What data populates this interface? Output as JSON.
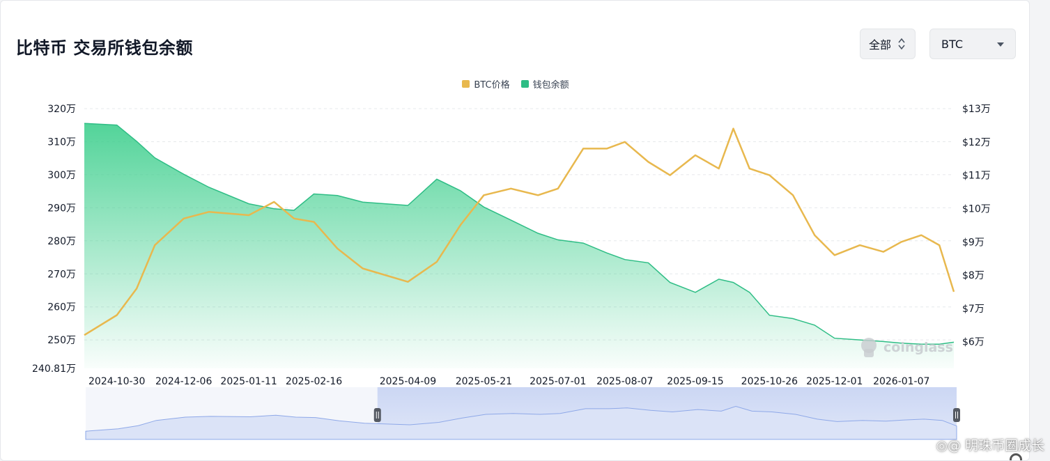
{
  "page": {
    "title": "比特币 交易所钱包余额",
    "range_label": "全部",
    "coin_label": "BTC",
    "watermark": "明珠币圈成长",
    "brand": "coinglass",
    "icons": [
      "sort-arrows-icon",
      "caret-down-icon",
      "coinglass-logo-icon",
      "weibo-at-icon",
      "gear-icon"
    ]
  },
  "chart_data": {
    "type": "area",
    "title": "",
    "xlabel": "",
    "ylabel": "",
    "x_ticks": [
      "2024-10-30",
      "2024-12-06",
      "2025-01-11",
      "2025-02-16",
      "2025-04-09",
      "2025-05-21",
      "2025-07-01",
      "2025-08-07",
      "2025-09-15",
      "2025-10-26",
      "2025-12-01",
      "2026-01-07"
    ],
    "y_left_ticks": [
      "320万",
      "310万",
      "300万",
      "290万",
      "280万",
      "270万",
      "260万",
      "250万"
    ],
    "y_left_min_label": "240.81万",
    "y_left_range": [
      2408100,
      3200000
    ],
    "y_right_ticks": [
      "$13万",
      "$12万",
      "$11万",
      "$10万",
      "$9万",
      "$8万",
      "$7万",
      "$6万"
    ],
    "y_right_range": [
      52000,
      130000
    ],
    "grid": true,
    "legend_position": "top-center",
    "colors": {
      "price": "#e8b84e",
      "balance": "#3fcf8e",
      "slider": "#8ea8e8"
    },
    "legend": [
      "BTC价格",
      "钱包余额"
    ],
    "x": [
      "2024-10-12",
      "2024-10-30",
      "2024-11-10",
      "2024-11-20",
      "2024-12-06",
      "2024-12-20",
      "2025-01-11",
      "2025-01-25",
      "2025-02-05",
      "2025-02-16",
      "2025-03-01",
      "2025-03-15",
      "2025-04-09",
      "2025-04-25",
      "2025-05-08",
      "2025-05-21",
      "2025-06-05",
      "2025-06-20",
      "2025-07-01",
      "2025-07-15",
      "2025-07-28",
      "2025-08-07",
      "2025-08-20",
      "2025-09-01",
      "2025-09-15",
      "2025-09-28",
      "2025-10-06",
      "2025-10-15",
      "2025-10-26",
      "2025-11-08",
      "2025-11-20",
      "2025-12-01",
      "2025-12-15",
      "2025-12-28",
      "2026-01-07",
      "2026-01-18",
      "2026-01-28",
      "2026-02-05"
    ],
    "series": [
      {
        "name": "BTC价格",
        "axis": "right",
        "values": [
          62000,
          68000,
          76000,
          89000,
          97000,
          99000,
          98000,
          102000,
          97000,
          96000,
          88000,
          82000,
          78000,
          84000,
          95000,
          104000,
          106000,
          104000,
          106000,
          118000,
          118000,
          120000,
          114000,
          110000,
          116000,
          112000,
          124000,
          112000,
          110000,
          104000,
          92000,
          86000,
          89000,
          87000,
          90000,
          92000,
          89000,
          75000
        ]
      },
      {
        "name": "钱包余额",
        "axis": "left",
        "values": [
          3155000,
          3150000,
          3100000,
          3050000,
          3000000,
          2960000,
          2910000,
          2895000,
          2890000,
          2940000,
          2935000,
          2915000,
          2905000,
          2985000,
          2950000,
          2900000,
          2860000,
          2820000,
          2800000,
          2790000,
          2760000,
          2740000,
          2730000,
          2670000,
          2640000,
          2680000,
          2670000,
          2640000,
          2570000,
          2560000,
          2540000,
          2500000,
          2495000,
          2490000,
          2485000,
          2482000,
          2482000,
          2488000
        ]
      }
    ],
    "zoom": {
      "start_fraction": 0.335,
      "end_fraction": 1.0
    }
  }
}
